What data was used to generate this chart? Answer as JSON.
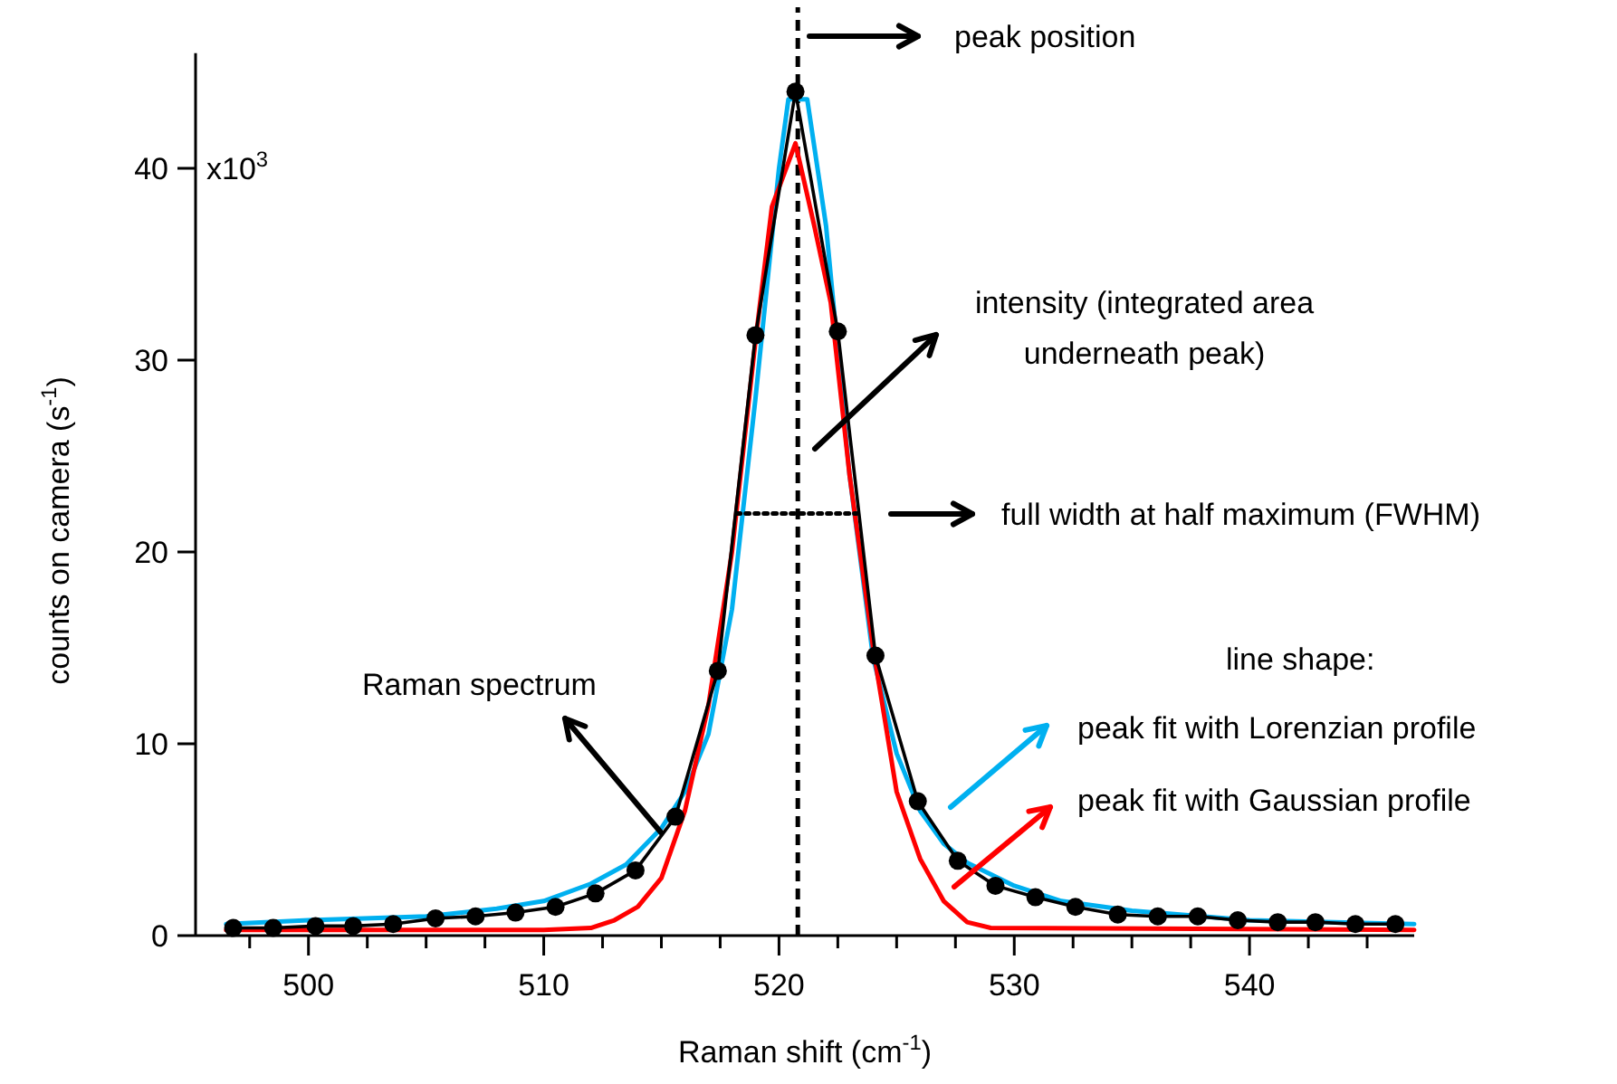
{
  "chart_data": {
    "type": "line",
    "xlabel": "Raman shift (cm$^{-1}$)",
    "ylabel": "counts on camera (s$^{-1}$)",
    "xlim": [
      495.2,
      547
    ],
    "ylim": [
      0,
      46
    ],
    "xticks": [
      {
        "value": 497.5,
        "label": null
      },
      500,
      {
        "value": 502.5,
        "label": null
      },
      {
        "value": 505,
        "label": null
      },
      {
        "value": 507.5,
        "label": null
      },
      510,
      {
        "value": 512.5,
        "label": null
      },
      {
        "value": 515,
        "label": null
      },
      {
        "value": 517.5,
        "label": null
      },
      520,
      {
        "value": 522.5,
        "label": null
      },
      {
        "value": 525,
        "label": null
      },
      {
        "value": 527.5,
        "label": null
      },
      530,
      {
        "value": 532.5,
        "label": null
      },
      {
        "value": 535,
        "label": null
      },
      {
        "value": 537.5,
        "label": null
      },
      540,
      {
        "value": 542.5,
        "label": null
      },
      {
        "value": 545,
        "label": null
      }
    ],
    "yticks": [
      0,
      10,
      20,
      30,
      40
    ],
    "legend": "bottom right",
    "series": [
      {
        "name": "peak fit with Lorenzian profile",
        "color": "#00b0f0",
        "marker": "none",
        "x": [
          496.5,
          500,
          505,
          508,
          510,
          512,
          513.5,
          515,
          516,
          517,
          518,
          519,
          520,
          520.4,
          521.2,
          522,
          523,
          524,
          525,
          526,
          527,
          528,
          530,
          532,
          535,
          540,
          547
        ],
        "values": [
          0.6,
          0.8,
          1.0,
          1.4,
          1.8,
          2.7,
          3.7,
          5.6,
          7.5,
          10.5,
          17,
          28,
          40,
          43.6,
          43.6,
          37,
          24,
          14.5,
          9.5,
          6.5,
          4.8,
          3.8,
          2.6,
          1.8,
          1.3,
          0.8,
          0.6
        ]
      },
      {
        "name": "peak fit with Gaussian profile",
        "color": "#ff0000",
        "marker": "none",
        "x": [
          496.5,
          510,
          512,
          513,
          514,
          515,
          516,
          517,
          518,
          519,
          519.7,
          520.7,
          521.5,
          522.2,
          523,
          524,
          525,
          526,
          527,
          528,
          529,
          547
        ],
        "values": [
          0.3,
          0.3,
          0.4,
          0.8,
          1.5,
          3,
          6.5,
          12,
          20,
          31,
          38,
          41.3,
          37,
          33,
          24,
          15,
          7.5,
          4,
          1.8,
          0.7,
          0.4,
          0.3
        ]
      },
      {
        "name": "Raman spectrum",
        "color": "#000000",
        "marker": "circle",
        "x": [
          496.8,
          498.5,
          500.3,
          501.9,
          503.6,
          505.4,
          507.1,
          508.8,
          510.5,
          512.2,
          513.9,
          515.6,
          517.4,
          519.0,
          520.7,
          522.5,
          524.1,
          525.9,
          527.6,
          529.2,
          530.9,
          532.6,
          534.4,
          536.1,
          537.8,
          539.5,
          541.2,
          542.8,
          544.5,
          546.2
        ],
        "values": [
          0.4,
          0.4,
          0.5,
          0.5,
          0.6,
          0.9,
          1.0,
          1.2,
          1.5,
          2.2,
          3.4,
          6.2,
          13.8,
          31.3,
          44.0,
          31.5,
          14.6,
          7.0,
          3.9,
          2.6,
          2.0,
          1.5,
          1.1,
          1.0,
          1.0,
          0.8,
          0.7,
          0.7,
          0.6,
          0.6
        ]
      },
      {
        "color": "#000000",
        "marker": "none",
        "line_style": "dotted",
        "x": [
          518.2,
          523.3
        ],
        "values": [
          22,
          22
        ]
      }
    ],
    "ref_lines": [
      {
        "axis": "x",
        "value": 520.8,
        "color": "#000000",
        "line_style": "dashed"
      }
    ],
    "annotations": [
      "peak position",
      "intensity (integrated area underneath peak)",
      "full width at half maximum (FWHM)",
      "line shape:",
      "x10$^{3}$"
    ]
  }
}
